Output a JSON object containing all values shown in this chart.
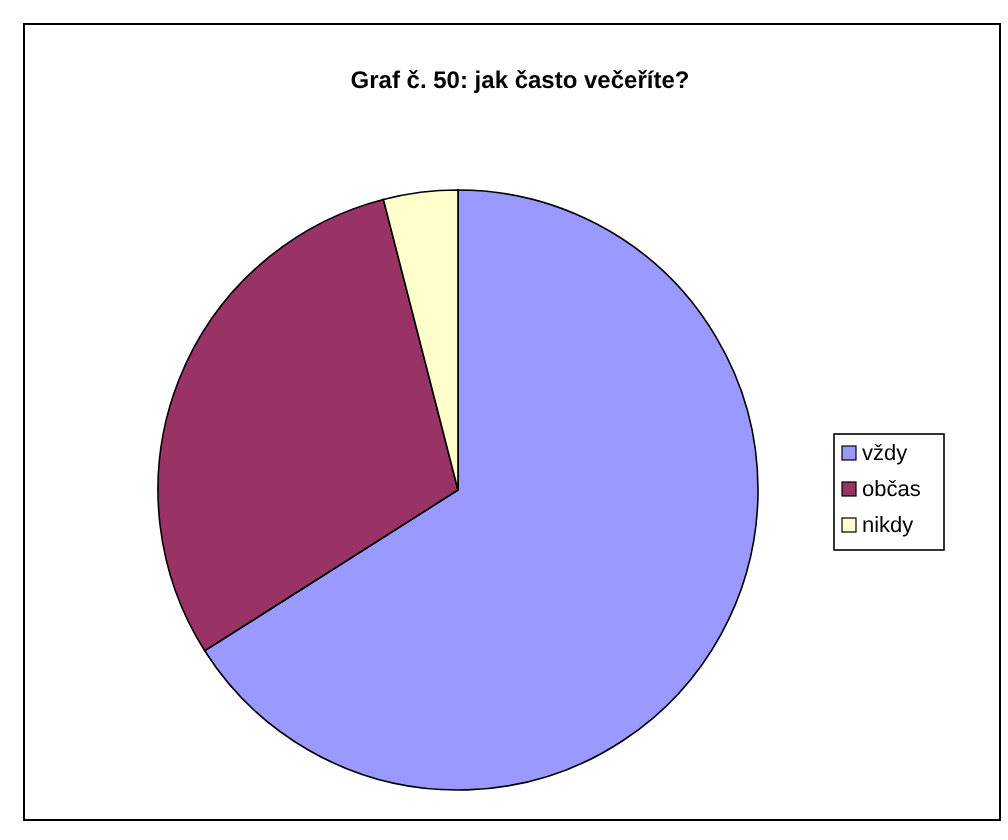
{
  "chart_data": {
    "type": "pie",
    "title": "Graf č. 50: jak často večeříte?",
    "categories": [
      "vždy",
      "občas",
      "nikdy"
    ],
    "values": [
      66,
      30,
      4
    ],
    "colors": [
      "#9999ff",
      "#993366",
      "#ffffcc"
    ],
    "legend": "right"
  }
}
